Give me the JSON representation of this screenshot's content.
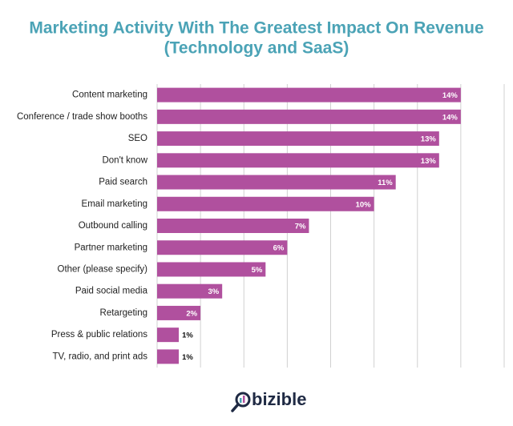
{
  "chart_data": {
    "type": "bar",
    "orientation": "horizontal",
    "title": "Marketing Activity With The Greatest Impact On Revenue",
    "subtitle": "(Technology and SaaS)",
    "categories": [
      "Content marketing",
      "Conference / trade show booths",
      "SEO",
      "Don't know",
      "Paid search",
      "Email marketing",
      "Outbound calling",
      "Partner marketing",
      "Other (please specify)",
      "Paid social media",
      "Retargeting",
      "Press & public relations",
      "TV, radio, and print ads"
    ],
    "values": [
      14,
      14,
      13,
      13,
      11,
      10,
      7,
      6,
      5,
      3,
      2,
      1,
      1
    ],
    "value_labels": [
      "14%",
      "14%",
      "13%",
      "13%",
      "11%",
      "10%",
      "7%",
      "6%",
      "5%",
      "3%",
      "2%",
      "1%",
      "1%"
    ],
    "color": "#b0509e",
    "xlim": [
      0,
      16
    ],
    "xticks": [
      0,
      2,
      4,
      6,
      8,
      10,
      12,
      14,
      16
    ],
    "grid": true,
    "logo": "bizible"
  }
}
